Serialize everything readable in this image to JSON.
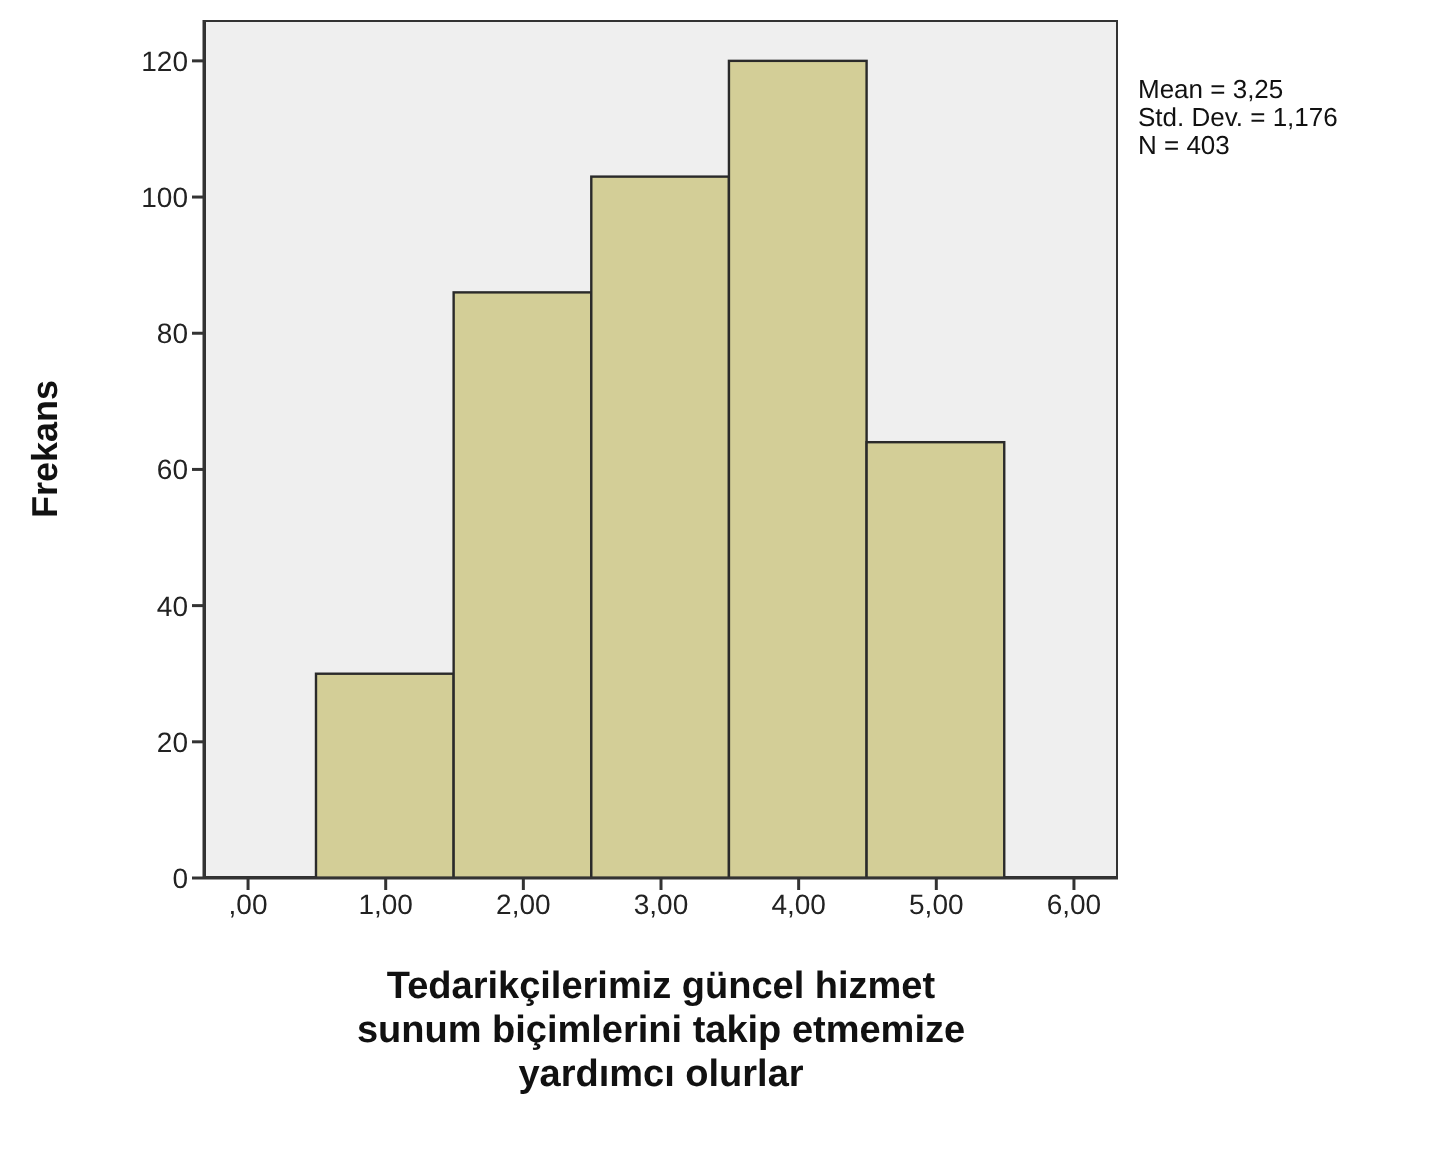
{
  "chart_data": {
    "type": "histogram",
    "bins": [
      0.5,
      1.5,
      2.5,
      3.5,
      4.5,
      5.5
    ],
    "values": [
      30,
      86,
      103,
      120,
      64
    ],
    "color": "#d3ce97",
    "xlabel": "Tedarikçilerimiz güncel hizmet sunum biçimlerini takip etmemize yardımcı olurlar",
    "ylabel": "Frekans",
    "xlim": [
      -0.32,
      6.32
    ],
    "xticks": [
      {
        "value": 0,
        "label": ",00"
      },
      {
        "value": 1,
        "label": "1,00"
      },
      {
        "value": 2,
        "label": "2,00"
      },
      {
        "value": 3,
        "label": "3,00"
      },
      {
        "value": 4,
        "label": "4,00"
      },
      {
        "value": 5,
        "label": "5,00"
      },
      {
        "value": 6,
        "label": "6,00"
      }
    ],
    "ylim": [
      0,
      126
    ],
    "yticks": [
      0,
      20,
      40,
      60,
      80,
      100,
      120
    ],
    "annotations": [
      "Mean = 3,25",
      "Std. Dev. = 1,176",
      "N = 403"
    ],
    "grid": false,
    "legend": false
  }
}
